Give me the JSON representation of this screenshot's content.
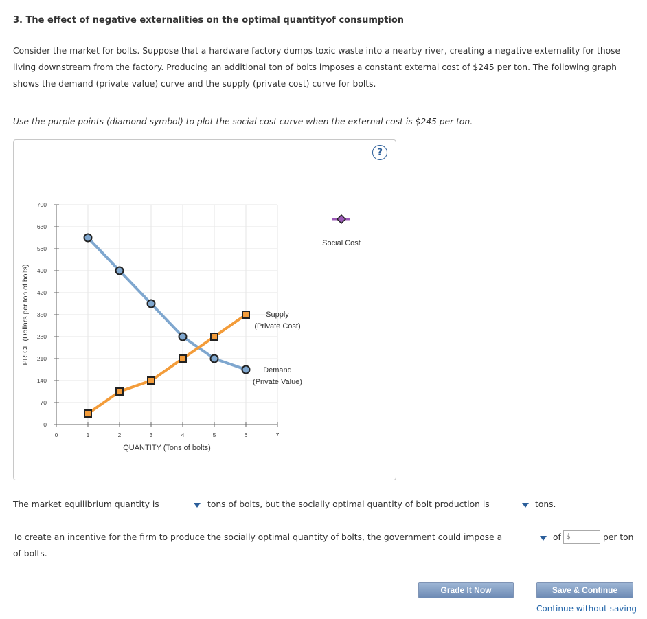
{
  "title": "3. The effect of negative externalities on the optimal quantityof consumption",
  "paragraph": "Consider the market for bolts. Suppose that a hardware factory dumps toxic waste into a nearby river, creating a negative externality for those living downstream from the factory. Producing an additional ton of bolts imposes a constant external cost of $245 per ton. The following graph shows the demand (private value) curve and the supply (private cost) curve for bolts.",
  "instruction": "Use the purple points (diamond symbol) to plot the social cost curve when the external cost is $245 per ton.",
  "help_label": "?",
  "colors": {
    "demand": "#7fa7cf",
    "supply": "#f39c3a",
    "social_cost": "#9b59b6",
    "link": "#1f63a8"
  },
  "chart_data": {
    "type": "line",
    "xlabel": "QUANTITY (Tons of bolts)",
    "ylabel": "PRICE (Dollars per ton of bolts)",
    "xlim": [
      0,
      7
    ],
    "ylim": [
      0,
      700
    ],
    "x_ticks": [
      "0",
      "1",
      "2",
      "3",
      "4",
      "5",
      "6",
      "7"
    ],
    "y_ticks": [
      "0",
      "70",
      "140",
      "210",
      "280",
      "350",
      "420",
      "490",
      "560",
      "630",
      "700"
    ],
    "grid": true,
    "series": [
      {
        "name": "Demand (Private Value)",
        "label_line1": "Demand",
        "label_line2": "(Private Value)",
        "marker": "circle",
        "x": [
          1,
          2,
          3,
          4,
          5,
          6
        ],
        "y": [
          595,
          490,
          385,
          280,
          210,
          175
        ]
      },
      {
        "name": "Supply (Private Cost)",
        "label_line1": "Supply",
        "label_line2": "(Private Cost)",
        "marker": "square",
        "x": [
          1,
          2,
          3,
          4,
          5,
          6
        ],
        "y": [
          35,
          105,
          140,
          210,
          280,
          350
        ]
      }
    ],
    "palette": {
      "name": "Social Cost",
      "marker": "diamond"
    }
  },
  "questions": {
    "q1_text_a": "The market equilibrium quantity is",
    "q1_text_b": "tons of bolts, but the socially optimal quantity of bolt production is",
    "q1_text_c": "tons.",
    "q2_text_a": "To create an incentive for the firm to produce the socially optimal quantity of bolts, the government could impose a",
    "q2_of": "of",
    "q2_dollar": "$",
    "q2_per_ton": "per ton",
    "q2_text_b": "of bolts."
  },
  "buttons": {
    "grade": "Grade It Now",
    "save": "Save & Continue",
    "continue_link": "Continue without saving"
  }
}
